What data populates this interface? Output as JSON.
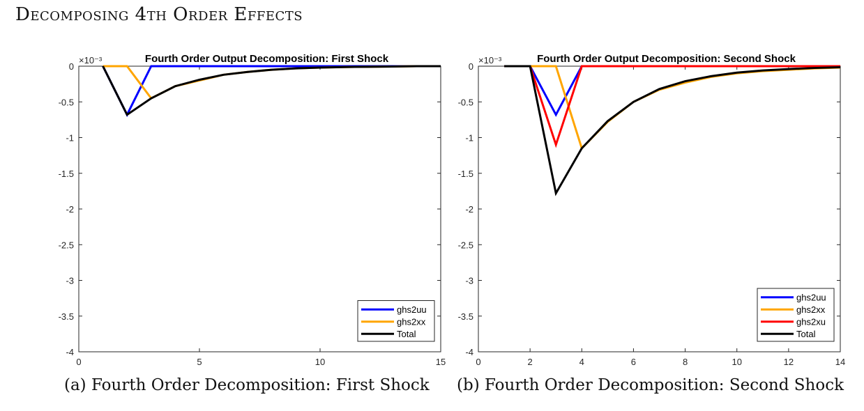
{
  "page": {
    "title": "Decomposing 4th Order Effects",
    "caption_a": "(a) Fourth Order Decomposition: First Shock",
    "caption_b": "(b) Fourth Order Decomposition: Second Shock"
  },
  "chart_data": [
    {
      "type": "line",
      "title": "Fourth Order Output Decomposition: First Shock",
      "xlabel": "",
      "ylabel": "",
      "y_exponent_label": "×10⁻³",
      "xlim": [
        0,
        15
      ],
      "ylim": [
        -4,
        0
      ],
      "xticks": [
        0,
        5,
        10,
        15
      ],
      "yticks": [
        0,
        -0.5,
        -1,
        -1.5,
        -2,
        -2.5,
        -3,
        -3.5,
        -4
      ],
      "ytick_labels": [
        "0",
        "-0.5",
        "-1",
        "-1.5",
        "-2",
        "-2.5",
        "-3",
        "-3.5",
        "-4"
      ],
      "grid": false,
      "legend_position": "bottom-right",
      "series": [
        {
          "name": "ghs2uu",
          "color": "#0000ff",
          "x": [
            1,
            2,
            3,
            4,
            5,
            6,
            7,
            8,
            9,
            10,
            11,
            12,
            13,
            14,
            15
          ],
          "y": [
            0,
            -0.68,
            0,
            0,
            0,
            0,
            0,
            0,
            0,
            0,
            0,
            0,
            0,
            0,
            0
          ]
        },
        {
          "name": "ghs2xx",
          "color": "#ffa500",
          "x": [
            1,
            2,
            3,
            4,
            5,
            6,
            7,
            8,
            9,
            10,
            11,
            12,
            13,
            14,
            15
          ],
          "y": [
            0,
            0,
            -0.45,
            -0.28,
            -0.2,
            -0.12,
            -0.08,
            -0.05,
            -0.03,
            -0.02,
            -0.012,
            -0.008,
            -0.005,
            0,
            0
          ]
        },
        {
          "name": "Total",
          "color": "#000000",
          "x": [
            1,
            2,
            3,
            4,
            5,
            6,
            7,
            8,
            9,
            10,
            11,
            12,
            13,
            14,
            15
          ],
          "y": [
            0,
            -0.68,
            -0.45,
            -0.28,
            -0.19,
            -0.12,
            -0.08,
            -0.05,
            -0.03,
            -0.02,
            -0.012,
            -0.008,
            -0.005,
            0,
            0
          ]
        }
      ]
    },
    {
      "type": "line",
      "title": "Fourth Order Output Decomposition: Second Shock",
      "xlabel": "",
      "ylabel": "",
      "y_exponent_label": "×10⁻³",
      "xlim": [
        0,
        14
      ],
      "ylim": [
        -4,
        0
      ],
      "xticks": [
        0,
        2,
        4,
        6,
        8,
        10,
        12,
        14
      ],
      "yticks": [
        0,
        -0.5,
        -1,
        -1.5,
        -2,
        -2.5,
        -3,
        -3.5,
        -4
      ],
      "ytick_labels": [
        "0",
        "-0.5",
        "-1",
        "-1.5",
        "-2",
        "-2.5",
        "-3",
        "-3.5",
        "-4"
      ],
      "grid": false,
      "legend_position": "bottom-right",
      "series": [
        {
          "name": "ghs2uu",
          "color": "#0000ff",
          "x": [
            1,
            2,
            3,
            4,
            5,
            6,
            7,
            8,
            9,
            10,
            11,
            12,
            13,
            14
          ],
          "y": [
            0,
            0,
            -0.68,
            0,
            0,
            0,
            0,
            0,
            0,
            0,
            0,
            0,
            0,
            0
          ]
        },
        {
          "name": "ghs2xx",
          "color": "#ffa500",
          "x": [
            1,
            2,
            3,
            4,
            5,
            6,
            7,
            8,
            9,
            10,
            11,
            12,
            13,
            14
          ],
          "y": [
            0,
            0,
            0,
            -1.15,
            -0.78,
            -0.5,
            -0.33,
            -0.23,
            -0.15,
            -0.1,
            -0.07,
            -0.05,
            -0.03,
            -0.02
          ]
        },
        {
          "name": "ghs2xu",
          "color": "#ff0000",
          "x": [
            1,
            2,
            3,
            4,
            5,
            6,
            7,
            8,
            9,
            10,
            11,
            12,
            13,
            14
          ],
          "y": [
            0,
            0,
            -1.1,
            0,
            0,
            0,
            0,
            0,
            0,
            0,
            0,
            0,
            0,
            0
          ]
        },
        {
          "name": "Total",
          "color": "#000000",
          "x": [
            1,
            2,
            3,
            4,
            5,
            6,
            7,
            8,
            9,
            10,
            11,
            12,
            13,
            14
          ],
          "y": [
            0,
            0,
            -1.78,
            -1.15,
            -0.77,
            -0.5,
            -0.32,
            -0.21,
            -0.14,
            -0.09,
            -0.06,
            -0.04,
            -0.025,
            -0.015
          ]
        }
      ]
    }
  ]
}
